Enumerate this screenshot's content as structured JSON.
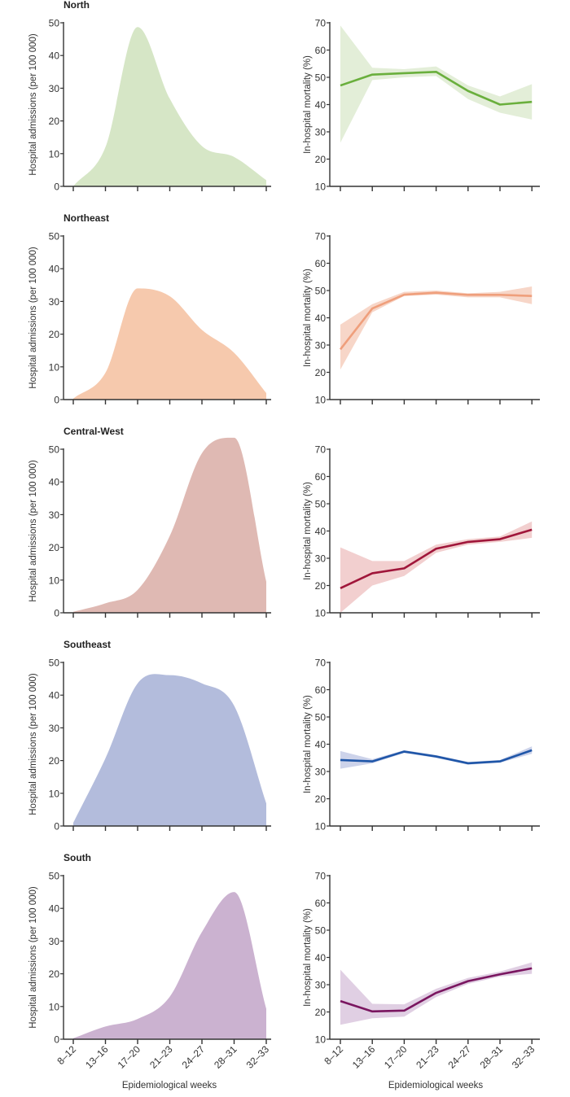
{
  "chart_data": [
    {
      "panel": "admissions",
      "region": "North",
      "type": "area",
      "title": "North",
      "ylabel": "Hospital admissions (per 100 000)",
      "ylim": [
        0,
        50
      ],
      "yticks": [
        0,
        10,
        20,
        30,
        40,
        50
      ],
      "categories": [
        "8–12",
        "13–16",
        "17–20",
        "21–23",
        "24–27",
        "28–31",
        "32–33"
      ],
      "values": [
        0,
        12,
        48.7,
        26.8,
        12.3,
        9,
        1.9
      ],
      "color": "#d6e6c6"
    },
    {
      "panel": "mortality",
      "region": "North",
      "type": "line",
      "ylabel": "In-hospital mortality (%)",
      "ylim": [
        10,
        70
      ],
      "yticks": [
        10,
        20,
        30,
        40,
        50,
        60,
        70
      ],
      "categories": [
        "8–12",
        "13–16",
        "17–20",
        "21–23",
        "24–27",
        "28–31",
        "32–33"
      ],
      "values": [
        47,
        51,
        51.5,
        52,
        45,
        40,
        41
      ],
      "ci_lower": [
        26,
        49,
        50,
        50.5,
        42,
        37,
        34.5
      ],
      "ci_upper": [
        69,
        53.5,
        53,
        54,
        47,
        43,
        47.5
      ],
      "color": "#6aaf3d",
      "band_color": "#e3eed8"
    },
    {
      "panel": "admissions",
      "region": "Northeast",
      "type": "area",
      "title": "Northeast",
      "ylabel": "Hospital admissions (per 100 000)",
      "ylim": [
        0,
        50
      ],
      "yticks": [
        0,
        10,
        20,
        30,
        40,
        50
      ],
      "categories": [
        "8–12",
        "13–16",
        "17–20",
        "21–23",
        "24–27",
        "28–31",
        "32–33"
      ],
      "values": [
        0.3,
        8.2,
        34,
        31.6,
        21.3,
        14.3,
        2
      ],
      "color": "#f6c9ad"
    },
    {
      "panel": "mortality",
      "region": "Northeast",
      "type": "line",
      "ylabel": "In-hospital mortality (%)",
      "ylim": [
        10,
        70
      ],
      "yticks": [
        10,
        20,
        30,
        40,
        50,
        60,
        70
      ],
      "categories": [
        "8–12",
        "13–16",
        "17–20",
        "21–23",
        "24–27",
        "28–31",
        "32–33"
      ],
      "values": [
        28.4,
        43.4,
        48.5,
        49.2,
        48.4,
        48.4,
        48
      ],
      "ci_lower": [
        21,
        42,
        48,
        48.5,
        47.5,
        47.5,
        45
      ],
      "ci_upper": [
        37.5,
        45,
        49.5,
        50,
        49,
        49.5,
        51.5
      ],
      "color": "#ef9f7c",
      "band_color": "#f7d6c8"
    },
    {
      "panel": "admissions",
      "region": "Central-West",
      "type": "area",
      "title": "Central-West",
      "ylabel": "Hospital admissions (per 100 000)",
      "ylim": [
        0,
        50
      ],
      "yticks": [
        0,
        10,
        20,
        30,
        40,
        50
      ],
      "categories": [
        "8–12",
        "13–16",
        "17–20",
        "21–23",
        "24–27",
        "28–31",
        "32–33"
      ],
      "values": [
        0.3,
        2.9,
        7,
        23.5,
        48.8,
        53.5,
        9.5
      ],
      "color": "#dfb9b3"
    },
    {
      "panel": "mortality",
      "region": "Central-West",
      "type": "line",
      "ylabel": "In-hospital mortality (%)",
      "ylim": [
        10,
        70
      ],
      "yticks": [
        10,
        20,
        30,
        40,
        50,
        60,
        70
      ],
      "categories": [
        "8–12",
        "13–16",
        "17–20",
        "21–23",
        "24–27",
        "28–31",
        "32–33"
      ],
      "values": [
        19,
        24.5,
        26.3,
        33.5,
        36,
        37,
        40.5
      ],
      "ci_lower": [
        10,
        20,
        23.5,
        32,
        35,
        36,
        37.5
      ],
      "ci_upper": [
        34,
        29,
        29,
        35,
        37,
        38,
        43.5
      ],
      "color": "#a0163a",
      "band_color": "#f2cfcf"
    },
    {
      "panel": "admissions",
      "region": "Southeast",
      "type": "area",
      "title": "Southeast",
      "ylabel": "Hospital admissions (per 100 000)",
      "ylim": [
        0,
        50
      ],
      "yticks": [
        0,
        10,
        20,
        30,
        40,
        50
      ],
      "categories": [
        "8–12",
        "13–16",
        "17–20",
        "21–23",
        "24–27",
        "28–31",
        "32–33"
      ],
      "values": [
        1,
        20.7,
        43.6,
        46.1,
        43.6,
        36.8,
        6.9
      ],
      "color": "#b3bcdc"
    },
    {
      "panel": "mortality",
      "region": "Southeast",
      "type": "line",
      "ylabel": "In-hospital mortality (%)",
      "ylim": [
        10,
        70
      ],
      "yticks": [
        10,
        20,
        30,
        40,
        50,
        60,
        70
      ],
      "categories": [
        "8–12",
        "13–16",
        "17–20",
        "21–23",
        "24–27",
        "28–31",
        "32–33"
      ],
      "values": [
        34.2,
        33.7,
        37.3,
        35.5,
        33,
        33.7,
        37.8
      ],
      "ci_lower": [
        31,
        33,
        36.8,
        35,
        32.5,
        33.2,
        36.5
      ],
      "ci_upper": [
        37.5,
        34.5,
        37.8,
        36,
        33.5,
        34.2,
        39.2
      ],
      "color": "#1f56a8",
      "band_color": "#cdd3ea"
    },
    {
      "panel": "admissions",
      "region": "South",
      "type": "area",
      "title": "South",
      "ylabel": "Hospital admissions (per 100 000)",
      "xlabel": "Epidemiological weeks",
      "ylim": [
        0,
        50
      ],
      "yticks": [
        0,
        10,
        20,
        30,
        40,
        50
      ],
      "categories": [
        "8–12",
        "13–16",
        "17–20",
        "21–23",
        "24–27",
        "28–31",
        "32–33"
      ],
      "values": [
        0.3,
        3.9,
        6.2,
        13,
        32.8,
        45,
        9.3
      ],
      "color": "#cbb2d0"
    },
    {
      "panel": "mortality",
      "region": "South",
      "type": "line",
      "ylabel": "In-hospital mortality (%)",
      "xlabel": "Epidemiological weeks",
      "ylim": [
        10,
        70
      ],
      "yticks": [
        10,
        20,
        30,
        40,
        50,
        60,
        70
      ],
      "categories": [
        "8–12",
        "13–16",
        "17–20",
        "21–23",
        "24–27",
        "28–31",
        "32–33"
      ],
      "values": [
        24,
        20.2,
        20.5,
        27,
        31.3,
        33.8,
        36
      ],
      "ci_lower": [
        15.3,
        17.7,
        18.3,
        25.5,
        30.3,
        33,
        34
      ],
      "ci_upper": [
        35.5,
        23,
        22.8,
        28.5,
        32.5,
        34.8,
        38.2
      ],
      "color": "#7a1660",
      "band_color": "#e0cfe3"
    }
  ]
}
